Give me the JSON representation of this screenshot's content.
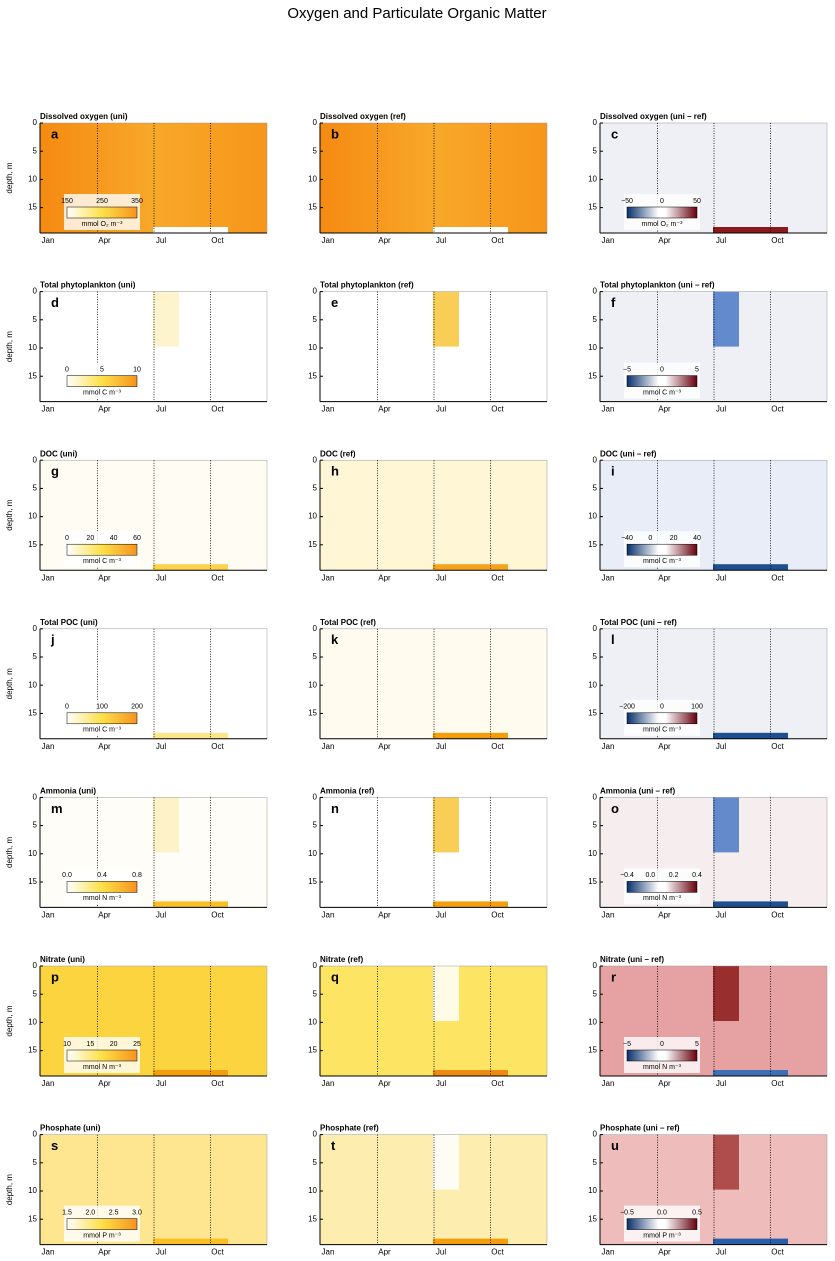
{
  "title": "Oxygen and Particulate Organic Matter",
  "y_label": "depth, m",
  "yticks": [
    0,
    5,
    10,
    15
  ],
  "months": [
    "Jan",
    "Apr",
    "Jul",
    "Oct"
  ],
  "rows": [
    {
      "panels": [
        {
          "title": "Dissolved oxygen  (uni)",
          "letter": "a",
          "colorbar": {
            "ticks": [
              "150",
              "250",
              "350"
            ],
            "unit": "mmol O₂ m⁻³"
          }
        },
        {
          "title": "Dissolved oxygen  (ref)",
          "letter": "b"
        },
        {
          "title": "Dissolved oxygen  (uni – ref)",
          "letter": "c",
          "colorbar": {
            "ticks": [
              "−50",
              "0",
              "50"
            ],
            "unit": "mmol O₂ m⁻³"
          }
        }
      ]
    },
    {
      "panels": [
        {
          "title": "Total phytoplankton  (uni)",
          "letter": "d",
          "colorbar": {
            "ticks": [
              "0",
              "5",
              "10"
            ],
            "unit": "mmol C m⁻³"
          }
        },
        {
          "title": "Total phytoplankton  (ref)",
          "letter": "e"
        },
        {
          "title": "Total phytoplankton  (uni – ref)",
          "letter": "f",
          "colorbar": {
            "ticks": [
              "−5",
              "0",
              "5"
            ],
            "unit": "mmol C m⁻³"
          }
        }
      ]
    },
    {
      "panels": [
        {
          "title": "DOC  (uni)",
          "letter": "g",
          "colorbar": {
            "ticks": [
              "0",
              "20",
              "40",
              "60"
            ],
            "unit": "mmol C m⁻³"
          }
        },
        {
          "title": "DOC  (ref)",
          "letter": "h"
        },
        {
          "title": "DOC  (uni – ref)",
          "letter": "i",
          "colorbar": {
            "ticks": [
              "−40",
              "0",
              "20",
              "40"
            ],
            "unit": "mmol C m⁻³"
          }
        }
      ]
    },
    {
      "panels": [
        {
          "title": "Total POC  (uni)",
          "letter": "j",
          "colorbar": {
            "ticks": [
              "0",
              "100",
              "200"
            ],
            "unit": "mmol C m⁻³"
          }
        },
        {
          "title": "Total POC  (ref)",
          "letter": "k"
        },
        {
          "title": "Total POC  (uni – ref)",
          "letter": "l",
          "colorbar": {
            "ticks": [
              "−200",
              "0",
              "100"
            ],
            "unit": "mmol C m⁻³"
          }
        }
      ]
    },
    {
      "panels": [
        {
          "title": "Ammonia  (uni)",
          "letter": "m",
          "colorbar": {
            "ticks": [
              "0.0",
              "0.4",
              "0.8"
            ],
            "unit": "mmol N m⁻³"
          }
        },
        {
          "title": "Ammonia  (ref)",
          "letter": "n"
        },
        {
          "title": "Ammonia  (uni – ref)",
          "letter": "o",
          "colorbar": {
            "ticks": [
              "−0.4",
              "0.0",
              "0.2",
              "0.4"
            ],
            "unit": "mmol N m⁻³"
          }
        }
      ]
    },
    {
      "panels": [
        {
          "title": "Nitrate  (uni)",
          "letter": "p",
          "colorbar": {
            "ticks": [
              "10",
              "15",
              "20",
              "25"
            ],
            "unit": "mmol N m⁻³"
          }
        },
        {
          "title": "Nitrate  (ref)",
          "letter": "q"
        },
        {
          "title": "Nitrate  (uni – ref)",
          "letter": "r",
          "colorbar": {
            "ticks": [
              "−5",
              "0",
              "5"
            ],
            "unit": "mmol N m⁻³"
          }
        }
      ]
    },
    {
      "panels": [
        {
          "title": "Phosphate  (uni)",
          "letter": "s",
          "colorbar": {
            "ticks": [
              "1.5",
              "2.0",
              "2.5",
              "3.0"
            ],
            "unit": "mmol P m⁻³"
          }
        },
        {
          "title": "Phosphate  (ref)",
          "letter": "t"
        },
        {
          "title": "Phosphate  (uni – ref)",
          "letter": "u",
          "colorbar": {
            "ticks": [
              "−0.5",
              "0.0",
              "0.5"
            ],
            "unit": "mmol P m⁻³"
          }
        }
      ]
    }
  ]
}
